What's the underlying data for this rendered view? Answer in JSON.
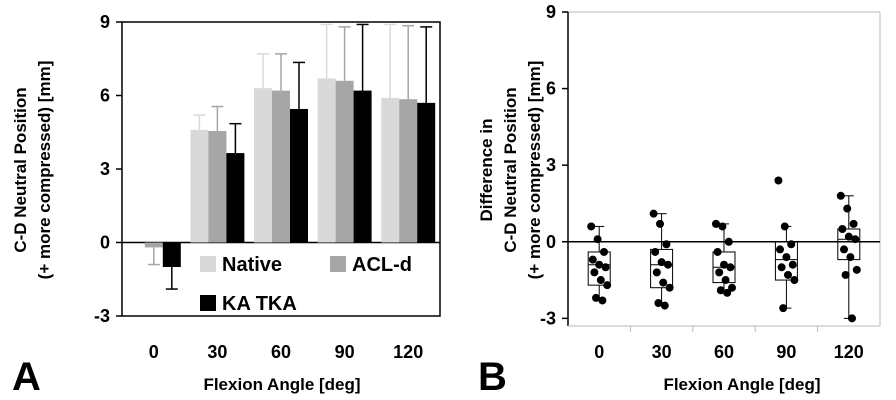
{
  "chart_data": [
    {
      "type": "bar",
      "panel_label": "A",
      "xlabel": "Flexion Angle [deg]",
      "ylabel_lines": [
        "C-D Neutral Position",
        "(+ more compressed) [mm]"
      ],
      "ylim": [
        -3,
        9
      ],
      "yticks": [
        "-3",
        "0",
        "3",
        "6",
        "9"
      ],
      "categories": [
        "0",
        "30",
        "60",
        "90",
        "120"
      ],
      "legend": {
        "placement": "inside-lower-right"
      },
      "colors": {
        "Native": "#d9d9d9",
        "ACL-d": "#a6a6a6",
        "KA TKA": "#000000"
      },
      "series": [
        {
          "name": "Native",
          "values": [
            null,
            4.6,
            6.3,
            6.7,
            5.9
          ],
          "error": [
            null,
            0.6,
            1.4,
            2.2,
            3.0
          ]
        },
        {
          "name": "ACL-d",
          "values": [
            -0.2,
            4.55,
            6.2,
            6.6,
            5.85
          ],
          "error": [
            0.7,
            1.0,
            1.5,
            2.2,
            3.0
          ]
        },
        {
          "name": "KA TKA",
          "values": [
            -1.0,
            3.65,
            5.45,
            6.2,
            5.7
          ],
          "error": [
            0.9,
            1.2,
            1.9,
            2.7,
            3.1
          ]
        }
      ]
    },
    {
      "type": "scatter",
      "subtype": "box-plot",
      "panel_label": "B",
      "xlabel": "Flexion Angle [deg]",
      "ylabel_lines": [
        "Difference in",
        "C-D Neutral Position",
        "(+ more compressed) [mm]"
      ],
      "ylim": [
        -3.3,
        9
      ],
      "yticks": [
        "-3",
        "0",
        "3",
        "6",
        "9"
      ],
      "categories": [
        "0",
        "30",
        "60",
        "90",
        "120"
      ],
      "reference_line": 0,
      "boxes": [
        {
          "category": "0",
          "whisker_low": -2.3,
          "q1": -1.7,
          "median": -0.9,
          "q3": -0.4,
          "whisker_high": 0.6
        },
        {
          "category": "30",
          "whisker_low": -2.5,
          "q1": -1.8,
          "median": -0.9,
          "q3": -0.3,
          "whisker_high": 1.1
        },
        {
          "category": "60",
          "whisker_low": -2.0,
          "q1": -1.6,
          "median": -1.0,
          "q3": -0.4,
          "whisker_high": 0.7
        },
        {
          "category": "90",
          "whisker_low": -2.6,
          "q1": -1.5,
          "median": -0.7,
          "q3": 0.0,
          "whisker_high": 0.6
        },
        {
          "category": "120",
          "whisker_low": -3.0,
          "q1": -0.7,
          "median": 0.1,
          "q3": 0.5,
          "whisker_high": 1.8
        }
      ],
      "points": [
        {
          "category": "0",
          "y": [
            0.6,
            0.1,
            -0.4,
            -0.7,
            -0.9,
            -1.0,
            -1.2,
            -1.5,
            -1.7,
            -2.2,
            -2.3
          ]
        },
        {
          "category": "30",
          "y": [
            1.1,
            0.7,
            -0.1,
            -0.4,
            -0.8,
            -0.9,
            -1.2,
            -1.6,
            -1.8,
            -2.4,
            -2.5
          ]
        },
        {
          "category": "60",
          "y": [
            0.7,
            0.6,
            0.0,
            -0.4,
            -0.9,
            -1.0,
            -1.2,
            -1.5,
            -1.8,
            -1.9,
            -2.0
          ]
        },
        {
          "category": "90",
          "y": [
            2.4,
            0.6,
            -0.1,
            -0.3,
            -0.6,
            -0.9,
            -1.0,
            -1.3,
            -1.5,
            -2.6
          ]
        },
        {
          "category": "120",
          "y": [
            1.8,
            1.3,
            0.7,
            0.5,
            0.2,
            0.1,
            -0.3,
            -0.6,
            -1.1,
            -1.3,
            -3.0
          ]
        }
      ]
    }
  ]
}
